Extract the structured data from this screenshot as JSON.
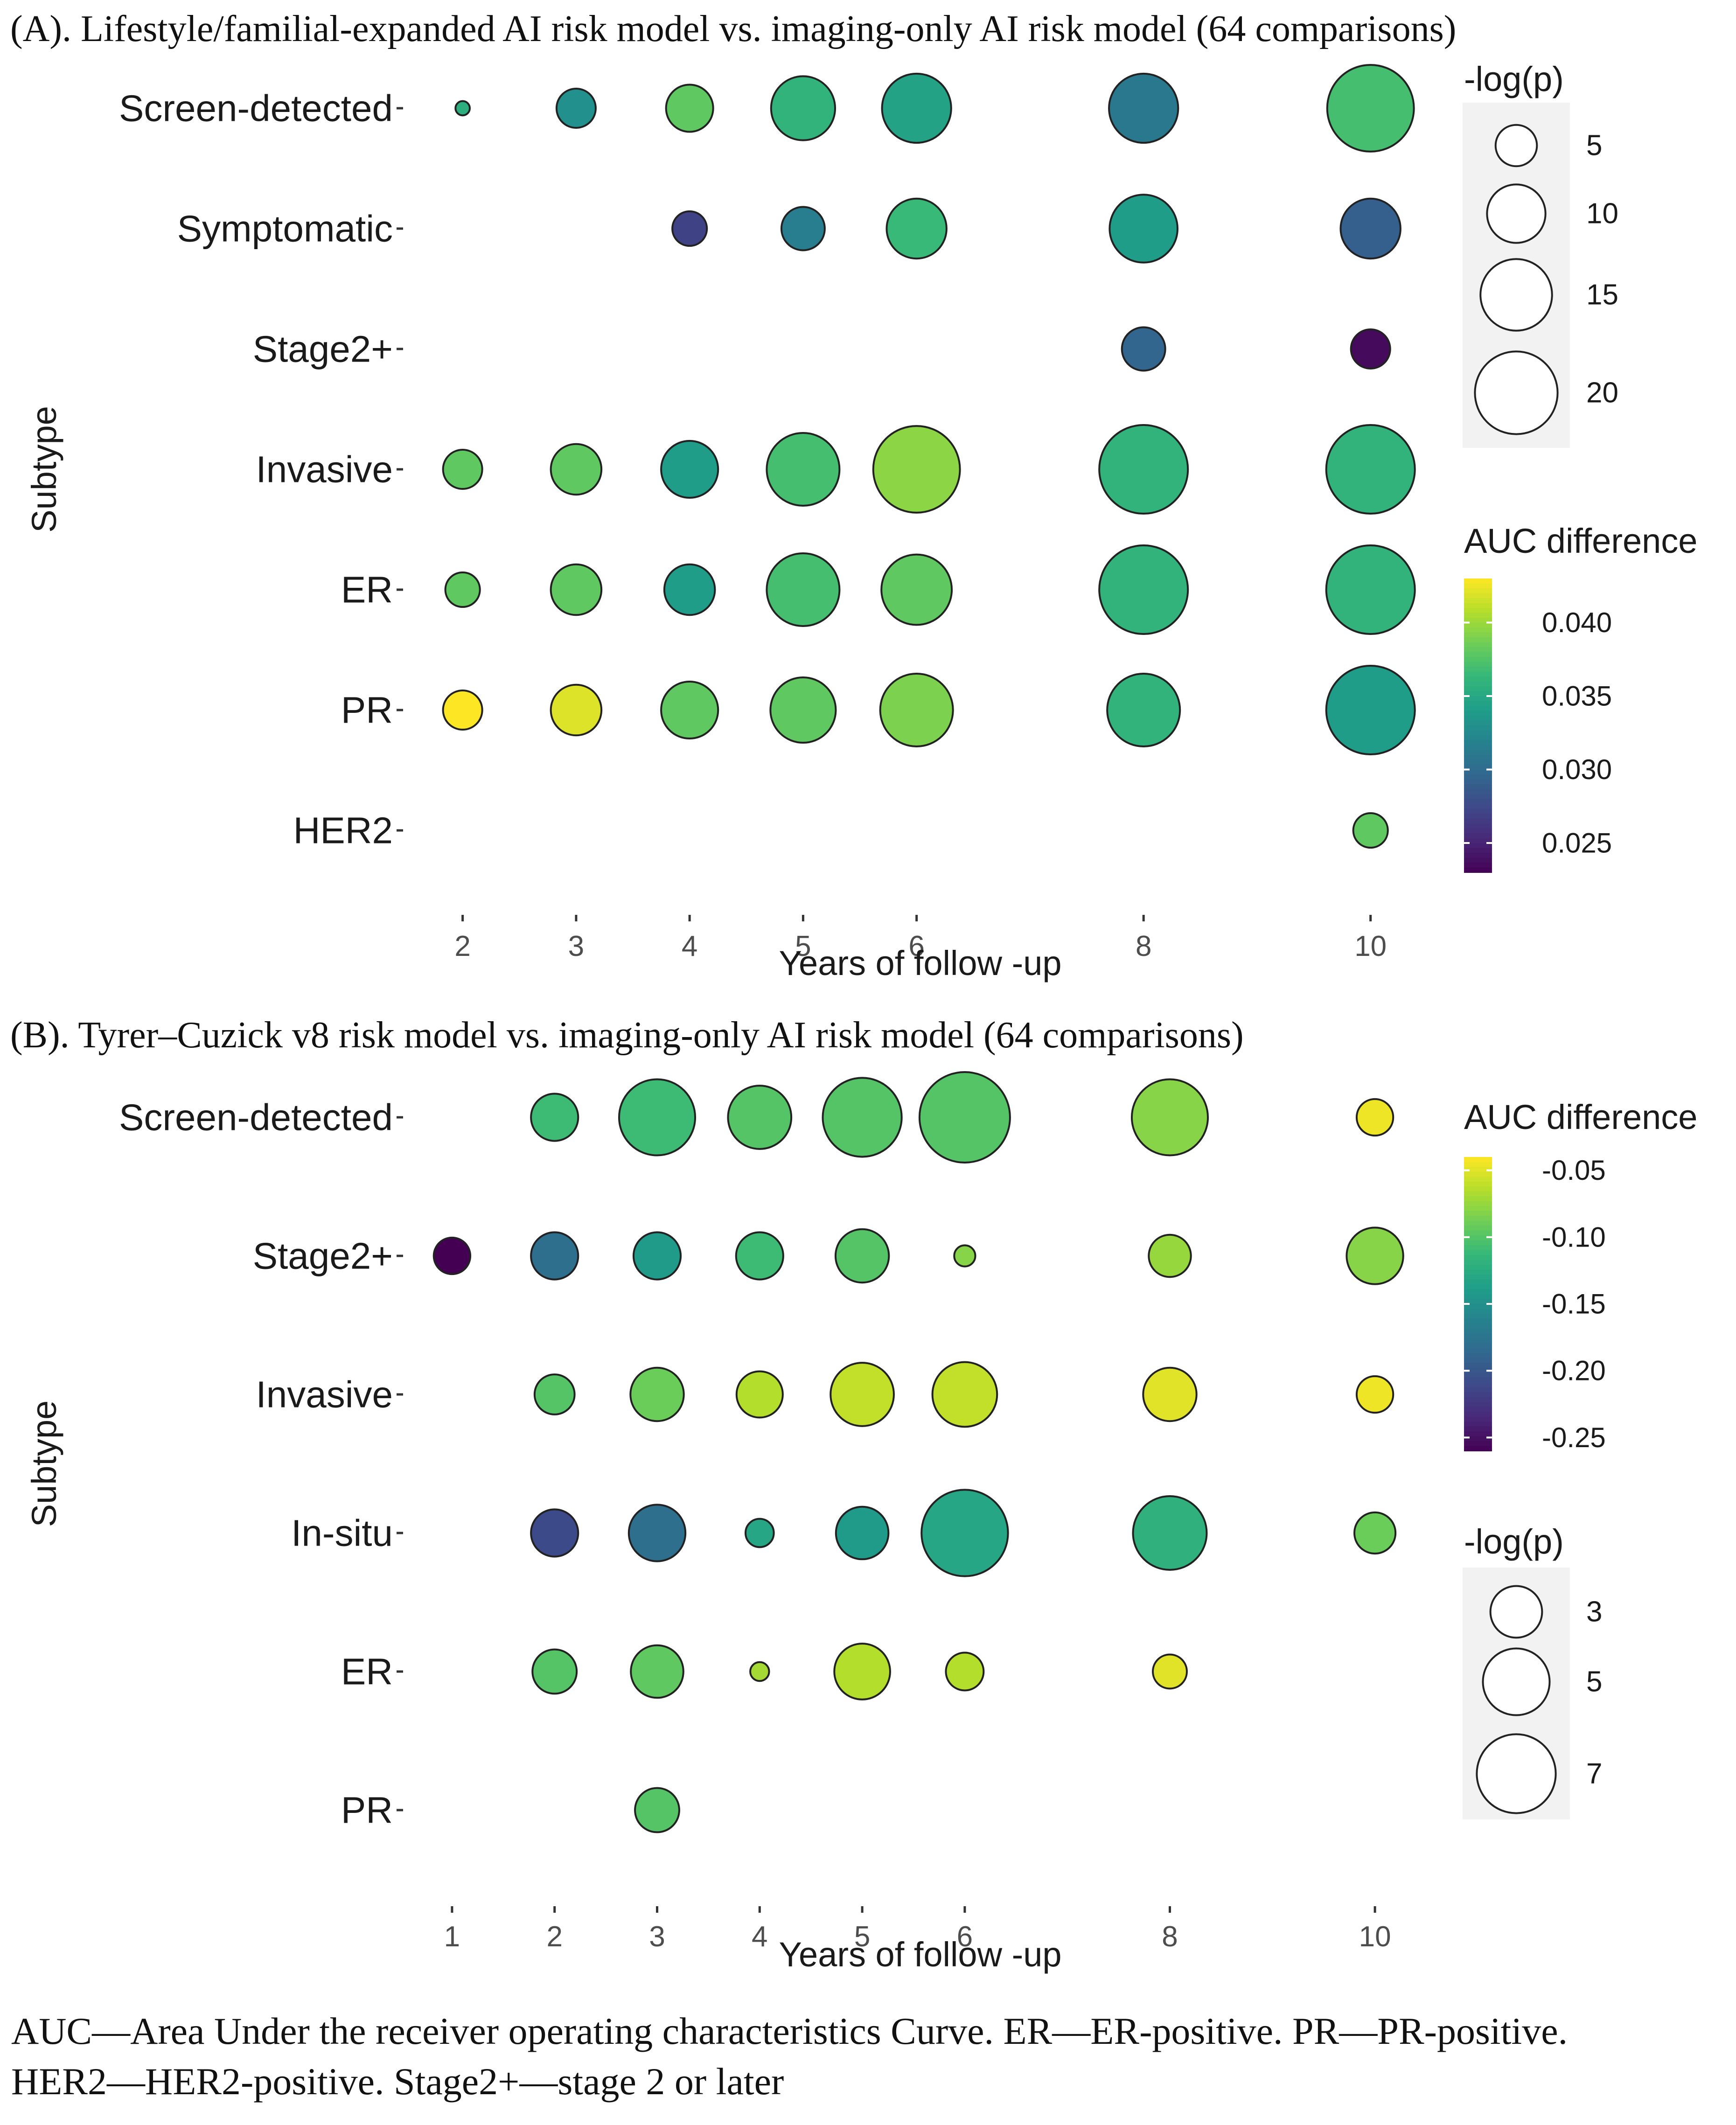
{
  "colors": {
    "viridis": [
      "#440154",
      "#482878",
      "#3e4989",
      "#31688e",
      "#26828e",
      "#1f9e89",
      "#35b779",
      "#6ece58",
      "#b5de2b",
      "#fde725"
    ],
    "marker_stroke": "#222222",
    "legend_panel": "#f2f2f2",
    "axis_text": "#4d4d4d"
  },
  "chart_data": [
    {
      "id": "A",
      "type": "scatter",
      "title": "(A). Lifestyle/familial-expanded AI risk model vs. imaging-only AI risk model (64 comparisons)",
      "xlabel": "Years of follow -up",
      "ylabel": "Subtype",
      "x_ticks": [
        2,
        3,
        4,
        5,
        6,
        8,
        10
      ],
      "x_tick_labels": [
        "2",
        "3",
        "4",
        "5",
        "6",
        "8",
        "10"
      ],
      "xlim": [
        1.5,
        10.4
      ],
      "categories": [
        "Screen-detected",
        "Symptomatic",
        "Stage2+",
        "Invasive",
        "ER",
        "PR",
        "HER2"
      ],
      "size_legend": {
        "title": "-log(p)",
        "breaks": [
          5,
          10,
          15,
          20
        ],
        "labels": [
          "5",
          "10",
          "15",
          "20"
        ],
        "range": [
          0.5,
          23
        ]
      },
      "color_legend": {
        "title": "AUC difference",
        "breaks": [
          0.025,
          0.03,
          0.035,
          0.04
        ],
        "labels": [
          "0.025",
          "0.030",
          "0.035",
          "0.040"
        ],
        "limits": [
          0.023,
          0.043
        ]
      },
      "points": [
        {
          "subtype": "Screen-detected",
          "x": 2,
          "size": 0.6,
          "color": 0.0355
        },
        {
          "subtype": "Screen-detected",
          "x": 3,
          "size": 4.5,
          "color": 0.033
        },
        {
          "subtype": "Screen-detected",
          "x": 4,
          "size": 6.5,
          "color": 0.038
        },
        {
          "subtype": "Screen-detected",
          "x": 5,
          "size": 12,
          "color": 0.036
        },
        {
          "subtype": "Screen-detected",
          "x": 6,
          "size": 14,
          "color": 0.0345
        },
        {
          "subtype": "Screen-detected",
          "x": 8,
          "size": 14,
          "color": 0.031
        },
        {
          "subtype": "Screen-detected",
          "x": 10,
          "size": 22,
          "color": 0.037
        },
        {
          "subtype": "Symptomatic",
          "x": 4,
          "size": 3.5,
          "color": 0.027
        },
        {
          "subtype": "Symptomatic",
          "x": 5,
          "size": 5.5,
          "color": 0.0315
        },
        {
          "subtype": "Symptomatic",
          "x": 6,
          "size": 10.5,
          "color": 0.0365
        },
        {
          "subtype": "Symptomatic",
          "x": 8,
          "size": 13.5,
          "color": 0.034
        },
        {
          "subtype": "Symptomatic",
          "x": 10,
          "size": 10.5,
          "color": 0.029
        },
        {
          "subtype": "Stage2+",
          "x": 8,
          "size": 5.5,
          "color": 0.0295
        },
        {
          "subtype": "Stage2+",
          "x": 10,
          "size": 4.5,
          "color": 0.0235
        },
        {
          "subtype": "Invasive",
          "x": 2,
          "size": 4.5,
          "color": 0.038
        },
        {
          "subtype": "Invasive",
          "x": 3,
          "size": 7.5,
          "color": 0.038
        },
        {
          "subtype": "Invasive",
          "x": 4,
          "size": 9.5,
          "color": 0.034
        },
        {
          "subtype": "Invasive",
          "x": 5,
          "size": 15.5,
          "color": 0.037
        },
        {
          "subtype": "Invasive",
          "x": 6,
          "size": 22,
          "color": 0.0395
        },
        {
          "subtype": "Invasive",
          "x": 8,
          "size": 23,
          "color": 0.036
        },
        {
          "subtype": "Invasive",
          "x": 10,
          "size": 23,
          "color": 0.036
        },
        {
          "subtype": "ER",
          "x": 2,
          "size": 3.5,
          "color": 0.038
        },
        {
          "subtype": "ER",
          "x": 3,
          "size": 7.5,
          "color": 0.038
        },
        {
          "subtype": "ER",
          "x": 4,
          "size": 7.5,
          "color": 0.034
        },
        {
          "subtype": "ER",
          "x": 5,
          "size": 15.5,
          "color": 0.037
        },
        {
          "subtype": "ER",
          "x": 6,
          "size": 14.5,
          "color": 0.038
        },
        {
          "subtype": "ER",
          "x": 8,
          "size": 23,
          "color": 0.036
        },
        {
          "subtype": "ER",
          "x": 10,
          "size": 23,
          "color": 0.036
        },
        {
          "subtype": "PR",
          "x": 2,
          "size": 4.5,
          "color": 0.043
        },
        {
          "subtype": "PR",
          "x": 3,
          "size": 7.5,
          "color": 0.042
        },
        {
          "subtype": "PR",
          "x": 4,
          "size": 9.5,
          "color": 0.038
        },
        {
          "subtype": "PR",
          "x": 5,
          "size": 12.5,
          "color": 0.038
        },
        {
          "subtype": "PR",
          "x": 6,
          "size": 15.5,
          "color": 0.039
        },
        {
          "subtype": "PR",
          "x": 8,
          "size": 15.5,
          "color": 0.036
        },
        {
          "subtype": "PR",
          "x": 10,
          "size": 23,
          "color": 0.034
        },
        {
          "subtype": "HER2",
          "x": 10,
          "size": 3.5,
          "color": 0.038
        }
      ]
    },
    {
      "id": "B",
      "type": "scatter",
      "title": "(B). Tyrer–Cuzick v8 risk model vs. imaging-only AI risk model (64 comparisons)",
      "xlabel": "Years of follow -up",
      "ylabel": "Subtype",
      "x_ticks": [
        1,
        2,
        3,
        4,
        5,
        6,
        8,
        10
      ],
      "x_tick_labels": [
        "1",
        "2",
        "3",
        "4",
        "5",
        "6",
        "8",
        "10"
      ],
      "xlim": [
        0.55,
        10.4
      ],
      "categories": [
        "Screen-detected",
        "Stage2+",
        "Invasive",
        "In-situ",
        "ER",
        "PR"
      ],
      "size_legend": {
        "title": "-log(p)",
        "breaks": [
          3,
          5,
          7
        ],
        "labels": [
          "3",
          "5",
          "7"
        ],
        "range": [
          0.4,
          9.2
        ]
      },
      "color_legend": {
        "title": "AUC difference",
        "breaks": [
          -0.25,
          -0.2,
          -0.15,
          -0.1,
          -0.05
        ],
        "labels": [
          "-0.25",
          "-0.20",
          "-0.15",
          "-0.10",
          "-0.05"
        ],
        "limits": [
          -0.26,
          -0.04
        ]
      },
      "points": [
        {
          "subtype": "Screen-detected",
          "x": 2,
          "size": 2.5,
          "color": -0.11
        },
        {
          "subtype": "Screen-detected",
          "x": 3,
          "size": 6.5,
          "color": -0.11
        },
        {
          "subtype": "Screen-detected",
          "x": 4,
          "size": 4.5,
          "color": -0.1
        },
        {
          "subtype": "Screen-detected",
          "x": 5,
          "size": 7,
          "color": -0.1
        },
        {
          "subtype": "Screen-detected",
          "x": 6,
          "size": 9.2,
          "color": -0.1
        },
        {
          "subtype": "Screen-detected",
          "x": 8,
          "size": 6.5,
          "color": -0.08
        },
        {
          "subtype": "Screen-detected",
          "x": 10,
          "size": 1.5,
          "color": -0.045
        },
        {
          "subtype": "Stage2+",
          "x": 1,
          "size": 1.5,
          "color": -0.26
        },
        {
          "subtype": "Stage2+",
          "x": 2,
          "size": 2.5,
          "color": -0.18
        },
        {
          "subtype": "Stage2+",
          "x": 3,
          "size": 2.5,
          "color": -0.14
        },
        {
          "subtype": "Stage2+",
          "x": 4,
          "size": 2.5,
          "color": -0.11
        },
        {
          "subtype": "Stage2+",
          "x": 5,
          "size": 3.2,
          "color": -0.1
        },
        {
          "subtype": "Stage2+",
          "x": 6,
          "size": 0.5,
          "color": -0.08
        },
        {
          "subtype": "Stage2+",
          "x": 8,
          "size": 2,
          "color": -0.075
        },
        {
          "subtype": "Stage2+",
          "x": 10,
          "size": 3.6,
          "color": -0.08
        },
        {
          "subtype": "Invasive",
          "x": 2,
          "size": 1.8,
          "color": -0.1
        },
        {
          "subtype": "Invasive",
          "x": 3,
          "size": 3.2,
          "color": -0.09
        },
        {
          "subtype": "Invasive",
          "x": 4,
          "size": 2.4,
          "color": -0.065
        },
        {
          "subtype": "Invasive",
          "x": 5,
          "size": 4.5,
          "color": -0.06
        },
        {
          "subtype": "Invasive",
          "x": 6,
          "size": 4.7,
          "color": -0.06
        },
        {
          "subtype": "Invasive",
          "x": 8,
          "size": 3.2,
          "color": -0.05
        },
        {
          "subtype": "Invasive",
          "x": 10,
          "size": 1.5,
          "color": -0.045
        },
        {
          "subtype": "In-situ",
          "x": 2,
          "size": 2.5,
          "color": -0.21
        },
        {
          "subtype": "In-situ",
          "x": 3,
          "size": 3.6,
          "color": -0.18
        },
        {
          "subtype": "In-situ",
          "x": 4,
          "size": 0.9,
          "color": -0.13
        },
        {
          "subtype": "In-situ",
          "x": 5,
          "size": 3.1,
          "color": -0.14
        },
        {
          "subtype": "In-situ",
          "x": 6,
          "size": 8.4,
          "color": -0.13
        },
        {
          "subtype": "In-situ",
          "x": 8,
          "size": 6.1,
          "color": -0.12
        },
        {
          "subtype": "In-situ",
          "x": 10,
          "size": 1.9,
          "color": -0.09
        },
        {
          "subtype": "ER",
          "x": 2,
          "size": 2.2,
          "color": -0.1
        },
        {
          "subtype": "ER",
          "x": 3,
          "size": 3.1,
          "color": -0.095
        },
        {
          "subtype": "ER",
          "x": 4,
          "size": 0.4,
          "color": -0.07
        },
        {
          "subtype": "ER",
          "x": 5,
          "size": 3.5,
          "color": -0.065
        },
        {
          "subtype": "ER",
          "x": 6,
          "size": 1.6,
          "color": -0.065
        },
        {
          "subtype": "ER",
          "x": 8,
          "size": 1.3,
          "color": -0.05
        },
        {
          "subtype": "PR",
          "x": 3,
          "size": 2.2,
          "color": -0.1
        }
      ]
    }
  ],
  "caption": {
    "line1": "AUC—Area Under the receiver operating characteristics Curve. ER—ER-positive. PR—PR-positive.",
    "line2": "HER2—HER2-positive. Stage2+—stage 2 or later"
  }
}
